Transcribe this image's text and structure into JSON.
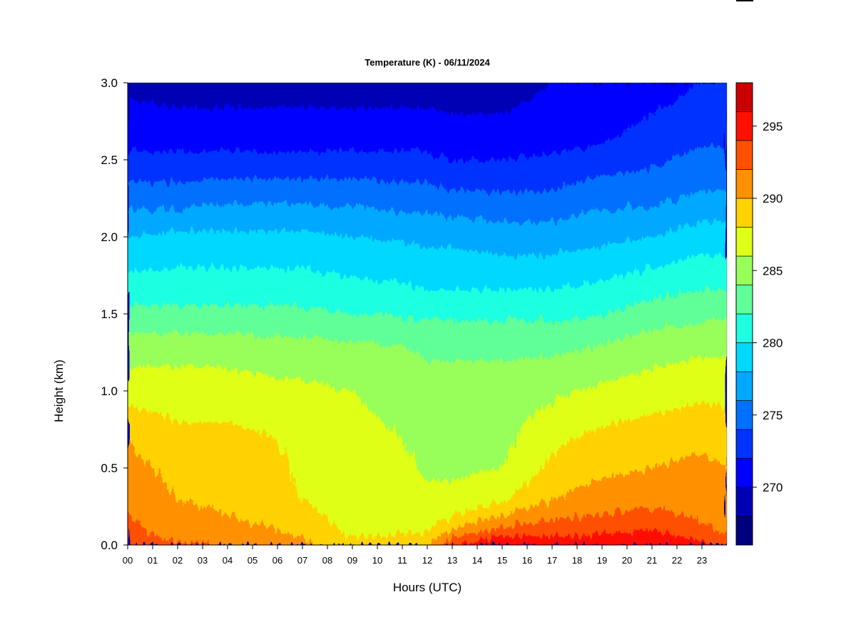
{
  "chart_data": {
    "type": "heatmap",
    "title": "Temperature (K) - 06/11/2024",
    "xlabel": "Hours (UTC)",
    "ylabel": "Height (km)",
    "xlim": [
      0,
      24
    ],
    "ylim": [
      0,
      3.0
    ],
    "x_ticks": [
      "00",
      "01",
      "02",
      "03",
      "04",
      "05",
      "06",
      "07",
      "08",
      "09",
      "10",
      "11",
      "12",
      "13",
      "14",
      "15",
      "16",
      "17",
      "18",
      "19",
      "20",
      "21",
      "22",
      "23"
    ],
    "y_ticks": [
      "0.0",
      "0.5",
      "1.0",
      "1.5",
      "2.0",
      "2.5",
      "3.0"
    ],
    "colorbar": {
      "levels": [
        266,
        268,
        270,
        272,
        274,
        276,
        278,
        280,
        282,
        284,
        286,
        288,
        290,
        292,
        294,
        296,
        298
      ],
      "colors": [
        "#00007F",
        "#0000B4",
        "#0000FF",
        "#0033FF",
        "#0070FF",
        "#00A8FF",
        "#00D8FF",
        "#1EFFE0",
        "#60FF98",
        "#98FF5A",
        "#E0FF18",
        "#FFD200",
        "#FF9000",
        "#FF5000",
        "#FF1000",
        "#CC0000",
        "#800000"
      ],
      "tick_labels": [
        "270",
        "275",
        "280",
        "285",
        "290",
        "295"
      ],
      "tick_values": [
        270,
        275,
        280,
        285,
        290,
        295
      ]
    },
    "temperature_profiles_K": {
      "heights_km": [
        0.0,
        0.05,
        0.1,
        0.2,
        0.3,
        0.5,
        0.7,
        1.0,
        1.3,
        1.6,
        2.0,
        2.3,
        2.6,
        3.0
      ],
      "hours": [
        0,
        2,
        4,
        6,
        7,
        9,
        11,
        12,
        13,
        15,
        17,
        19,
        21,
        23,
        24
      ],
      "values": [
        [
          293.5,
          293.0,
          292.5,
          292.0,
          291.5,
          290.5,
          290.0,
          287.0,
          285.0,
          281.5,
          278.0,
          274.5,
          271.5,
          269.5
        ],
        [
          292.5,
          291.5,
          291.0,
          290.5,
          290.0,
          289.5,
          288.5,
          287.0,
          285.0,
          281.5,
          278.5,
          274.5,
          271.5,
          269.0
        ],
        [
          292.0,
          291.0,
          290.5,
          290.0,
          289.5,
          289.0,
          288.5,
          287.0,
          285.0,
          281.5,
          278.5,
          275.0,
          271.5,
          269.0
        ],
        [
          291.5,
          290.5,
          290.0,
          289.5,
          289.2,
          288.5,
          288.0,
          286.5,
          284.5,
          281.5,
          278.5,
          275.0,
          271.5,
          269.0
        ],
        [
          290.5,
          290.0,
          289.2,
          288.5,
          288.0,
          287.5,
          287.0,
          286.5,
          284.5,
          281.5,
          278.5,
          275.0,
          271.5,
          269.0
        ],
        [
          288.2,
          288.0,
          287.5,
          287.2,
          287.0,
          286.6,
          286.4,
          286.0,
          284.2,
          281.0,
          278.0,
          275.0,
          271.5,
          269.0
        ],
        [
          288.5,
          288.2,
          287.8,
          287.2,
          287.0,
          286.5,
          286.0,
          285.5,
          284.0,
          280.8,
          277.8,
          274.5,
          271.5,
          269.0
        ],
        [
          290.0,
          288.5,
          287.8,
          287.0,
          286.5,
          285.6,
          285.3,
          285.0,
          283.5,
          280.5,
          277.5,
          274.5,
          271.5,
          269.0
        ],
        [
          294.0,
          292.0,
          290.0,
          287.5,
          286.5,
          285.6,
          285.2,
          285.0,
          283.5,
          280.5,
          277.5,
          274.0,
          271.0,
          269.0
        ],
        [
          296.0,
          294.5,
          292.5,
          290.0,
          287.6,
          286.0,
          285.5,
          285.0,
          283.5,
          280.5,
          277.0,
          274.0,
          271.0,
          269.0
        ],
        [
          295.0,
          294.0,
          293.0,
          291.5,
          290.0,
          288.5,
          287.5,
          285.5,
          283.5,
          280.5,
          277.0,
          274.0,
          271.5,
          270.0
        ],
        [
          295.5,
          294.5,
          293.5,
          292.0,
          291.0,
          289.5,
          288.5,
          286.5,
          284.0,
          281.0,
          277.5,
          275.0,
          272.0,
          270.0
        ],
        [
          296.0,
          295.0,
          294.0,
          292.5,
          291.5,
          290.0,
          289.0,
          287.0,
          285.0,
          282.0,
          278.0,
          275.0,
          273.0,
          271.0
        ],
        [
          294.5,
          293.5,
          292.5,
          291.5,
          291.0,
          290.5,
          289.5,
          287.5,
          285.5,
          282.5,
          279.0,
          276.0,
          274.0,
          272.0
        ],
        [
          293.5,
          292.5,
          291.5,
          291.0,
          290.5,
          290.0,
          289.0,
          287.5,
          285.5,
          282.5,
          279.0,
          276.0,
          274.0,
          272.0
        ]
      ]
    }
  }
}
